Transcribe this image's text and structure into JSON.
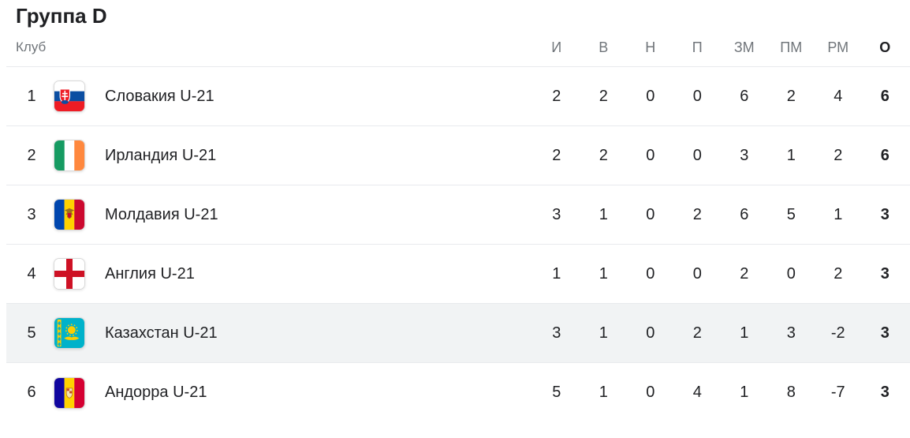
{
  "title": "Группа D",
  "table": {
    "club_column_label": "Клуб",
    "columns": [
      "И",
      "В",
      "Н",
      "П",
      "ЗМ",
      "ПМ",
      "РМ",
      "О"
    ],
    "rows": [
      {
        "pos": "1",
        "team": "Словакия U-21",
        "flag": "slovakia",
        "stats": [
          "2",
          "2",
          "0",
          "0",
          "6",
          "2",
          "4"
        ],
        "points": "6",
        "highlighted": false
      },
      {
        "pos": "2",
        "team": "Ирландия U-21",
        "flag": "ireland",
        "stats": [
          "2",
          "2",
          "0",
          "0",
          "3",
          "1",
          "2"
        ],
        "points": "6",
        "highlighted": false
      },
      {
        "pos": "3",
        "team": "Молдавия U-21",
        "flag": "moldova",
        "stats": [
          "3",
          "1",
          "0",
          "2",
          "6",
          "5",
          "1"
        ],
        "points": "3",
        "highlighted": false
      },
      {
        "pos": "4",
        "team": "Англия U-21",
        "flag": "england",
        "stats": [
          "1",
          "1",
          "0",
          "0",
          "2",
          "0",
          "2"
        ],
        "points": "3",
        "highlighted": false
      },
      {
        "pos": "5",
        "team": "Казахстан U-21",
        "flag": "kazakhstan",
        "stats": [
          "3",
          "1",
          "0",
          "2",
          "1",
          "3",
          "-2"
        ],
        "points": "3",
        "highlighted": true
      },
      {
        "pos": "6",
        "team": "Андорра U-21",
        "flag": "andorra",
        "stats": [
          "5",
          "1",
          "0",
          "4",
          "1",
          "8",
          "-7"
        ],
        "points": "3",
        "highlighted": false
      }
    ]
  },
  "colors": {
    "text": "#202124",
    "muted_text": "#70757a",
    "divider": "#e8eaed",
    "highlight_row": "#f1f3f4"
  }
}
